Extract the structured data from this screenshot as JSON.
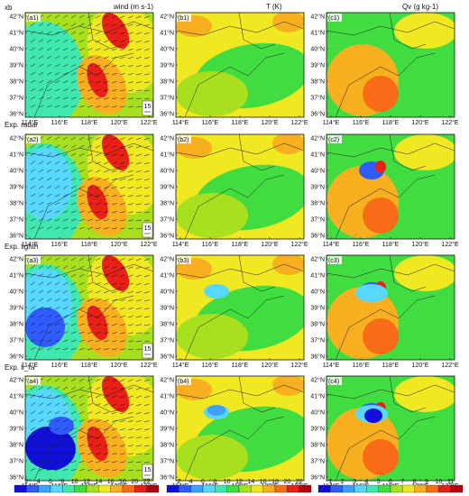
{
  "figure": {
    "row_labels": [
      "xb",
      "Exp. radar",
      "Exp. lightn",
      "Exp. li_ra"
    ],
    "column_titles": [
      "wind (m s-1)",
      "T (K)",
      "Qv (g kg-1)"
    ],
    "panels": [
      [
        "(a1)",
        "(b1)",
        "(c1)"
      ],
      [
        "(a2)",
        "(b2)",
        "(c2)"
      ],
      [
        "(a3)",
        "(b3)",
        "(c3)"
      ],
      [
        "(a4)",
        "(b4)",
        "(c4)"
      ]
    ],
    "lat_labels": [
      "42°N",
      "41°N",
      "40°N",
      "39°N",
      "38°N",
      "37°N",
      "36°N"
    ],
    "lon_labels": [
      "114°E",
      "116°E",
      "118°E",
      "120°E",
      "122°E"
    ],
    "reference_vector": "15"
  },
  "colorbars": {
    "wind": [
      "2",
      "4",
      "6",
      "8",
      "10",
      "12",
      "14",
      "16",
      "18",
      "20",
      "22"
    ],
    "temperature": [
      "2",
      "4",
      "6",
      "8",
      "10",
      "12",
      "14",
      "16",
      "18",
      "20",
      "22"
    ],
    "qv": [
      "1",
      "2",
      "3",
      "4",
      "5",
      "6",
      "7",
      "8",
      "9",
      "10",
      "11"
    ],
    "colors": [
      "#1010d8",
      "#2f5cff",
      "#3ea0ff",
      "#58d8ff",
      "#40e8b0",
      "#40dc40",
      "#a8e020",
      "#f0e820",
      "#f8b020",
      "#f86c18",
      "#e82018",
      "#b00010"
    ]
  }
}
